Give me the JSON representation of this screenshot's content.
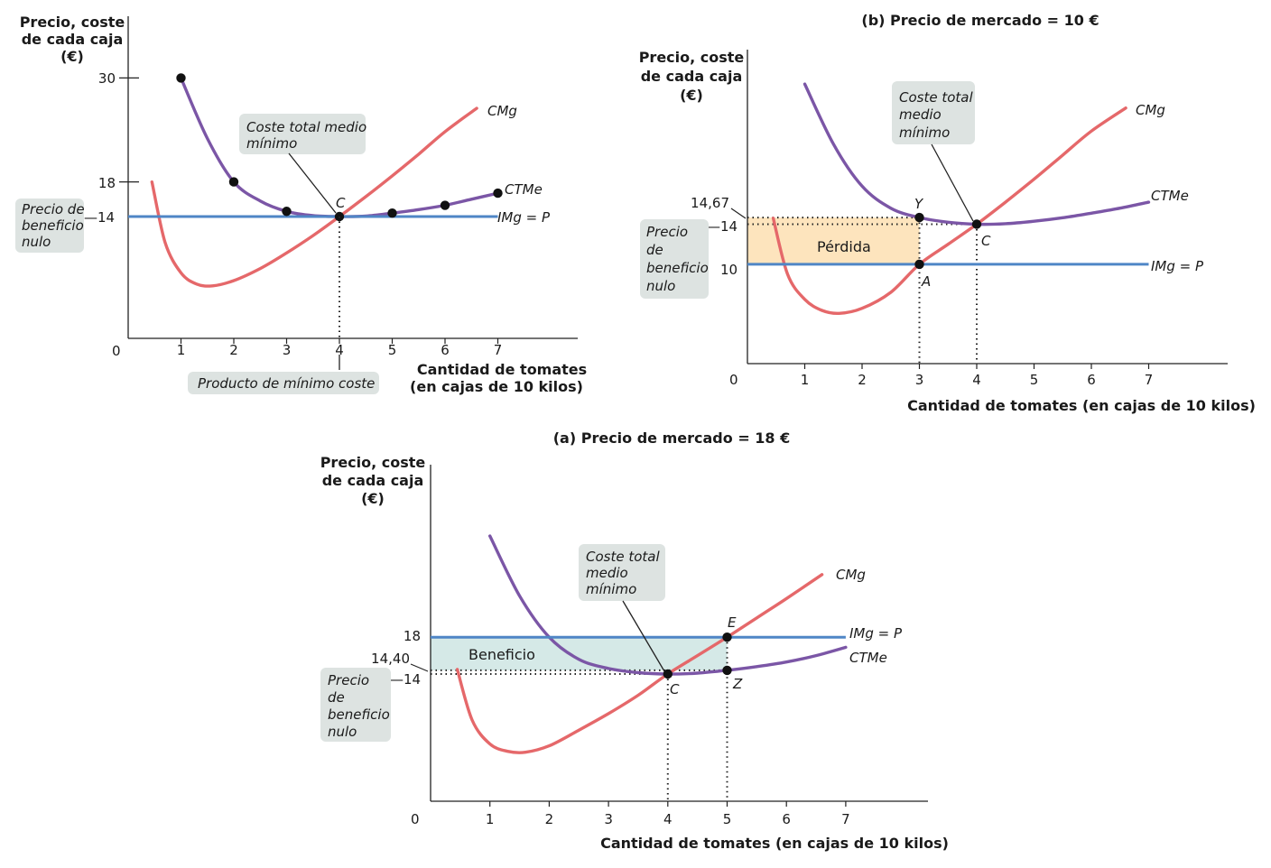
{
  "chart_data": [
    {
      "type": "line",
      "panel": "top-left",
      "title": "",
      "ylabel": [
        "Precio, coste",
        "de cada caja",
        "(€)"
      ],
      "xlabel": [
        "Cantidad de tomates",
        "(en cajas de 10 kilos)"
      ],
      "origin_label": "0",
      "xlim": [
        0,
        8
      ],
      "ylim": [
        0,
        32
      ],
      "x_ticks": [
        1,
        2,
        3,
        4,
        5,
        6,
        7
      ],
      "x_tick_labels": [
        "1",
        "2",
        "3",
        "4",
        "5",
        "6",
        "7"
      ],
      "y_ticks": [
        30,
        18
      ],
      "y_tick_labels": [
        "30",
        "18"
      ],
      "y_tick_special": {
        "value": 14,
        "label": "—14"
      },
      "series": [
        {
          "name": "CMg",
          "color": "#e5686a",
          "x": [
            0.45,
            0.7,
            1.0,
            1.3,
            1.6,
            2.0,
            2.5,
            3.0,
            3.5,
            4.0,
            4.5,
            5.0,
            5.5,
            6.0,
            6.6
          ],
          "y": [
            18,
            11,
            7.5,
            6.2,
            6.0,
            6.6,
            8,
            9.8,
            11.8,
            14,
            16.3,
            18.7,
            21.2,
            23.8,
            26.5
          ]
        },
        {
          "name": "CTMe",
          "color": "#7b56a6",
          "x": [
            1.0,
            1.5,
            2.0,
            2.5,
            3.0,
            3.5,
            4.0,
            4.5,
            5.0,
            5.5,
            6.0,
            6.5,
            7.0
          ],
          "y": [
            30,
            23,
            18,
            15.8,
            14.6,
            14.1,
            14,
            14.05,
            14.4,
            14.8,
            15.3,
            16,
            16.7
          ]
        },
        {
          "name": "IMg = P",
          "color": "#4f86c6",
          "x": [
            0,
            7
          ],
          "y": [
            14,
            14
          ]
        }
      ],
      "points": [
        {
          "x": 1,
          "y": 30
        },
        {
          "x": 2,
          "y": 18
        },
        {
          "x": 3,
          "y": 14.6
        },
        {
          "x": 4,
          "y": 14
        },
        {
          "x": 5,
          "y": 14.4
        },
        {
          "x": 6,
          "y": 15.3
        },
        {
          "x": 7,
          "y": 16.7
        }
      ],
      "point_label": {
        "text": "C",
        "x": 4,
        "y": 14
      },
      "annotations": {
        "ctme_min": [
          "Coste total medio",
          "mínimo"
        ],
        "break_even": [
          "Precio de",
          "beneficio",
          "nulo"
        ],
        "min_cost_output": "Producto de mínimo coste"
      }
    },
    {
      "type": "line",
      "panel": "top-right",
      "title": "(b) Precio de mercado = 10 €",
      "ylabel": [
        "Precio, coste",
        "de cada caja",
        "(€)"
      ],
      "xlabel": "Cantidad de tomates (en cajas de 10 kilos)",
      "origin_label": "0",
      "xlim": [
        0,
        8.4
      ],
      "ylim": [
        0,
        24
      ],
      "x_ticks": [
        1,
        2,
        3,
        4,
        5,
        6,
        7
      ],
      "x_tick_labels": [
        "1",
        "2",
        "3",
        "4",
        "5",
        "6",
        "7"
      ],
      "y_tick_labels": {
        "y14_67": "14,67",
        "y14": "—14",
        "y10": "10"
      },
      "series": [
        {
          "name": "CMg",
          "color": "#e5686a",
          "x": [
            0.45,
            0.7,
            1.0,
            1.3,
            1.6,
            2.0,
            2.5,
            3.0,
            3.5,
            4.0,
            4.5,
            5.0,
            5.5,
            6.0,
            6.6
          ],
          "y": [
            14.6,
            9,
            6.5,
            5.4,
            5.1,
            5.6,
            7.2,
            10,
            12,
            14,
            16.2,
            18.5,
            20.9,
            23.3,
            25.6
          ]
        },
        {
          "name": "CTMe",
          "color": "#7b56a6",
          "x": [
            1.0,
            1.5,
            2.0,
            2.5,
            3.0,
            3.5,
            4.0,
            4.5,
            5.0,
            5.5,
            6.0,
            6.5,
            7.0
          ],
          "y": [
            28,
            22,
            17.8,
            15.6,
            14.67,
            14.2,
            14,
            14.05,
            14.3,
            14.65,
            15.1,
            15.6,
            16.2
          ]
        },
        {
          "name": "IMg = P",
          "color": "#4f86c6",
          "x": [
            0,
            7
          ],
          "y": [
            10,
            10
          ]
        }
      ],
      "points": [
        {
          "label": "Y",
          "x": 3,
          "y": 14.67
        },
        {
          "label": "C",
          "x": 4,
          "y": 14
        },
        {
          "label": "A",
          "x": 3,
          "y": 10
        }
      ],
      "shaded_region": {
        "label": "Pérdida",
        "x": [
          0,
          3
        ],
        "y": [
          10,
          14.67
        ],
        "color": "#fde4bd"
      },
      "annotations": {
        "ctme_min": [
          "Coste total",
          "medio",
          "mínimo"
        ],
        "break_even": [
          "Precio",
          "de",
          "beneficio",
          "nulo"
        ]
      }
    },
    {
      "type": "line",
      "panel": "bottom",
      "title": "(a) Precio de mercado = 18 €",
      "ylabel": [
        "Precio, coste",
        "de cada caja",
        "(€)"
      ],
      "xlabel": "Cantidad de tomates (en cajas de 10 kilos)",
      "origin_label": "0",
      "xlim": [
        0,
        8.4
      ],
      "ylim": [
        0,
        28
      ],
      "x_ticks": [
        1,
        2,
        3,
        4,
        5,
        6,
        7
      ],
      "x_tick_labels": [
        "1",
        "2",
        "3",
        "4",
        "5",
        "6",
        "7"
      ],
      "y_tick_labels": {
        "y18": "18",
        "y14_40": "14,40",
        "y14": "—14"
      },
      "series": [
        {
          "name": "CMg",
          "color": "#e5686a",
          "x": [
            0.45,
            0.7,
            1.0,
            1.3,
            1.6,
            2.0,
            2.5,
            3.0,
            3.5,
            4.0,
            4.5,
            5.0,
            5.5,
            6.0,
            6.6
          ],
          "y": [
            14.5,
            9,
            6.4,
            5.6,
            5.5,
            6.2,
            7.9,
            9.7,
            11.7,
            14,
            16,
            18,
            20.1,
            22.2,
            24.8
          ]
        },
        {
          "name": "CTMe",
          "color": "#7b56a6",
          "x": [
            1.0,
            1.5,
            2.0,
            2.5,
            3.0,
            3.5,
            4.0,
            4.5,
            5.0,
            5.5,
            6.0,
            6.5,
            7.0
          ],
          "y": [
            29,
            22.5,
            18,
            15.6,
            14.6,
            14.15,
            14,
            14.1,
            14.4,
            14.8,
            15.3,
            16,
            16.9
          ]
        },
        {
          "name": "IMg = P",
          "color": "#4f86c6",
          "x": [
            0,
            7
          ],
          "y": [
            18,
            18
          ]
        }
      ],
      "points": [
        {
          "label": "E",
          "x": 5,
          "y": 18
        },
        {
          "label": "C",
          "x": 4,
          "y": 14
        },
        {
          "label": "Z",
          "x": 5,
          "y": 14.4
        }
      ],
      "shaded_region": {
        "label": "Beneficio",
        "x": [
          0,
          5
        ],
        "y": [
          14.4,
          18
        ],
        "color": "#d5e9e7"
      },
      "annotations": {
        "ctme_min": [
          "Coste total",
          "medio",
          "mínimo"
        ],
        "break_even": [
          "Precio",
          "de",
          "beneficio",
          "nulo"
        ]
      }
    }
  ]
}
